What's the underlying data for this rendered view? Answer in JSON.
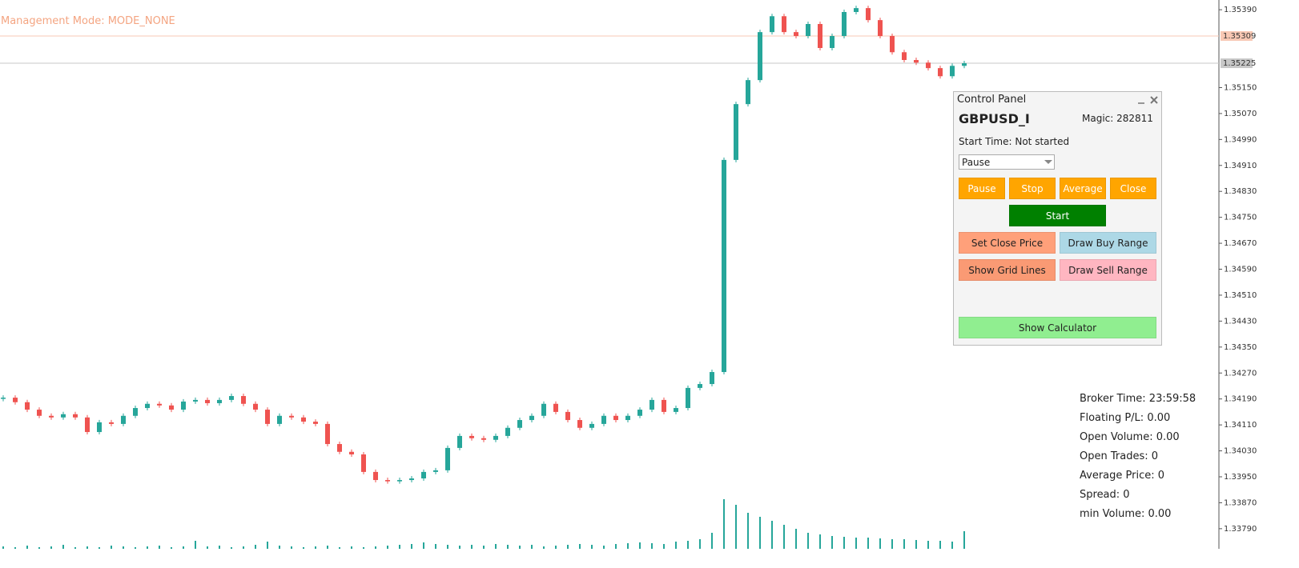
{
  "header": {
    "mode": "Management Mode: MODE_NONE"
  },
  "chart_data": {
    "type": "candlestick",
    "close": [
      1.34194,
      1.3418,
      1.34157,
      1.34138,
      1.34133,
      1.34143,
      1.34133,
      1.34088,
      1.34118,
      1.34113,
      1.34138,
      1.34162,
      1.34175,
      1.3417,
      1.34157,
      1.34182,
      1.34187,
      1.34177,
      1.34187,
      1.34199,
      1.34175,
      1.34157,
      1.34113,
      1.34138,
      1.34133,
      1.3412,
      1.34113,
      1.34051,
      1.34027,
      1.34019,
      1.33965,
      1.3394,
      1.33936,
      1.3394,
      1.33945,
      1.33965,
      1.3397,
      1.34039,
      1.34076,
      1.34069,
      1.34064,
      1.34076,
      1.34101,
      1.34125,
      1.34138,
      1.34175,
      1.3415,
      1.34125,
      1.34101,
      1.34113,
      1.34138,
      1.34125,
      1.34138,
      1.34157,
      1.34187,
      1.3415,
      1.34162,
      1.34224,
      1.34236,
      1.34273,
      1.34927,
      1.35099,
      1.35173,
      1.35321,
      1.3537,
      1.35321,
      1.35309,
      1.35346,
      1.35272,
      1.35309,
      1.35383,
      1.35395,
      1.35358,
      1.35309,
      1.35259,
      1.35235,
      1.35227,
      1.3521,
      1.35185,
      1.35217,
      1.35225
    ],
    "volume": [
      3,
      2,
      4,
      2,
      3,
      5,
      2,
      3,
      2,
      4,
      3,
      2,
      3,
      4,
      2,
      3,
      10,
      3,
      4,
      2,
      3,
      5,
      9,
      4,
      3,
      2,
      3,
      4,
      2,
      3,
      2,
      3,
      4,
      5,
      6,
      8,
      6,
      5,
      4,
      5,
      4,
      6,
      5,
      4,
      5,
      3,
      4,
      5,
      6,
      5,
      4,
      6,
      7,
      8,
      7,
      6,
      9,
      10,
      12,
      20,
      62,
      55,
      45,
      40,
      35,
      30,
      25,
      20,
      18,
      16,
      15,
      14,
      14,
      13,
      12,
      12,
      11,
      10,
      10,
      9,
      22
    ],
    "color_up": "#26a69a",
    "color_down": "#ef5350",
    "volume_color": "#26a69a",
    "ylim": [
      1.33728,
      1.3542
    ],
    "yticks": [
      {
        "value": 1.3539,
        "label": "1.35390"
      },
      {
        "value": 1.3515,
        "label": "1.35150"
      },
      {
        "value": 1.3507,
        "label": "1.35070"
      },
      {
        "value": 1.3499,
        "label": "1.34990"
      },
      {
        "value": 1.3491,
        "label": "1.34910"
      },
      {
        "value": 1.3483,
        "label": "1.34830"
      },
      {
        "value": 1.3475,
        "label": "1.34750"
      },
      {
        "value": 1.3467,
        "label": "1.34670"
      },
      {
        "value": 1.3459,
        "label": "1.34590"
      },
      {
        "value": 1.3451,
        "label": "1.34510"
      },
      {
        "value": 1.3443,
        "label": "1.34430"
      },
      {
        "value": 1.3435,
        "label": "1.34350"
      },
      {
        "value": 1.3427,
        "label": "1.34270"
      },
      {
        "value": 1.3419,
        "label": "1.34190"
      },
      {
        "value": 1.3411,
        "label": "1.34110"
      },
      {
        "value": 1.3403,
        "label": "1.34030"
      },
      {
        "value": 1.3395,
        "label": "1.33950"
      },
      {
        "value": 1.3387,
        "label": "1.33870"
      },
      {
        "value": 1.3379,
        "label": "1.33790"
      }
    ],
    "levels": [
      {
        "value": 1.35309,
        "color": "#f8c8b4"
      },
      {
        "value": 1.35225,
        "color": "#c8c8c8"
      }
    ]
  },
  "panel": {
    "title": "Control Panel",
    "symbol": "GBPUSD_I",
    "magic": "Magic: 282811",
    "start_time": "Start Time: Not started",
    "dropdown": "Pause",
    "buttons": [
      "Pause",
      "Stop",
      "Average",
      "Close",
      "Start",
      "Set Close Price",
      "Draw Buy Range",
      "Show Grid Lines",
      "Draw Sell Range",
      "Show Calculator"
    ]
  },
  "info": [
    "Broker Time: 23:59:58",
    "Floating P/L: 0.00",
    "Open Volume: 0.00",
    "Open Trades: 0",
    "Average Price: 0",
    "Spread: 0",
    "min Volume: 0.00"
  ]
}
